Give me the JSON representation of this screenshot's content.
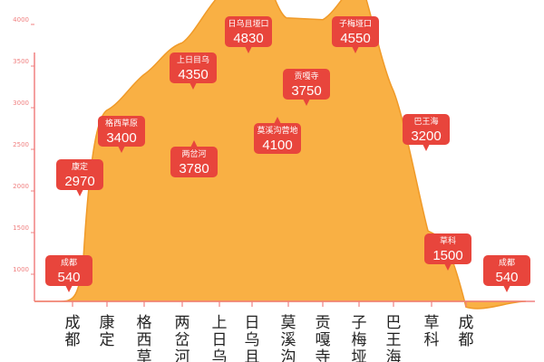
{
  "chart_data": {
    "type": "area",
    "title": "",
    "xlabel": "",
    "ylabel": "",
    "ylim": [
      0,
      4700
    ],
    "yticks": [
      1000,
      1500,
      2000,
      2500,
      3000,
      3500,
      4000,
      4500
    ],
    "ytick_labels": [
      "1000",
      "1500",
      "2000",
      "2500",
      "3000",
      "3500",
      "4000",
      "4500"
    ],
    "categories": [
      "成都",
      "康定",
      "格西草",
      "两岔河",
      "上日乌",
      "日乌且",
      "莫溪沟",
      "贡嘎寺",
      "子梅垭",
      "巴王海",
      "草科",
      "成都"
    ],
    "points": [
      {
        "name": "成都",
        "value": 540
      },
      {
        "name": "康定",
        "value": 2970
      },
      {
        "name": "格西草原",
        "value": 3400
      },
      {
        "name": "两岔河",
        "value": 3780
      },
      {
        "name": "上日目乌",
        "value": 4350
      },
      {
        "name": "日乌且垭口",
        "value": 4830
      },
      {
        "name": "莫溪沟营地",
        "value": 4100
      },
      {
        "name": "贡嘎寺",
        "value": 3750
      },
      {
        "name": "子梅垭口",
        "value": 4550
      },
      {
        "name": "巴王海",
        "value": 3200
      },
      {
        "name": "草科",
        "value": 1500
      },
      {
        "name": "成都",
        "value": 540
      }
    ],
    "grid": false,
    "legend": "none",
    "colors": {
      "fill": "#f9b044",
      "stroke": "#f09a28",
      "tag": "#e8453c",
      "axis": "#f08080"
    }
  }
}
